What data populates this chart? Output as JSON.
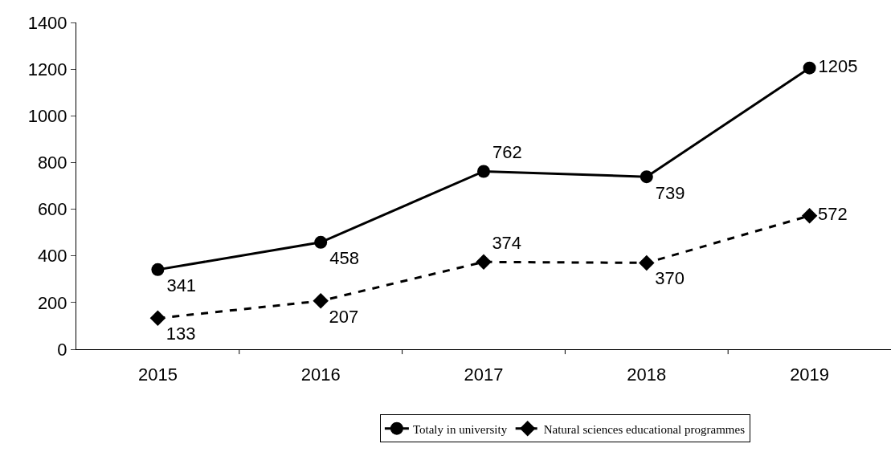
{
  "chart_data": {
    "type": "line",
    "categories": [
      "2015",
      "2016",
      "2017",
      "2018",
      "2019"
    ],
    "series": [
      {
        "name": "Totaly in university",
        "color": "#000000",
        "values": [
          341,
          458,
          762,
          739,
          1205
        ],
        "marker": "circle",
        "line_style": "solid"
      },
      {
        "name": "Natural sciences educational programmes",
        "color": "#000000",
        "values": [
          133,
          207,
          374,
          370,
          572
        ],
        "marker": "diamond",
        "line_style": "dashed"
      }
    ],
    "ylim": [
      0,
      1400
    ],
    "yticks": [
      0,
      200,
      400,
      600,
      800,
      1000,
      1200,
      1400
    ],
    "data_labels": true,
    "legend": "bottom"
  }
}
